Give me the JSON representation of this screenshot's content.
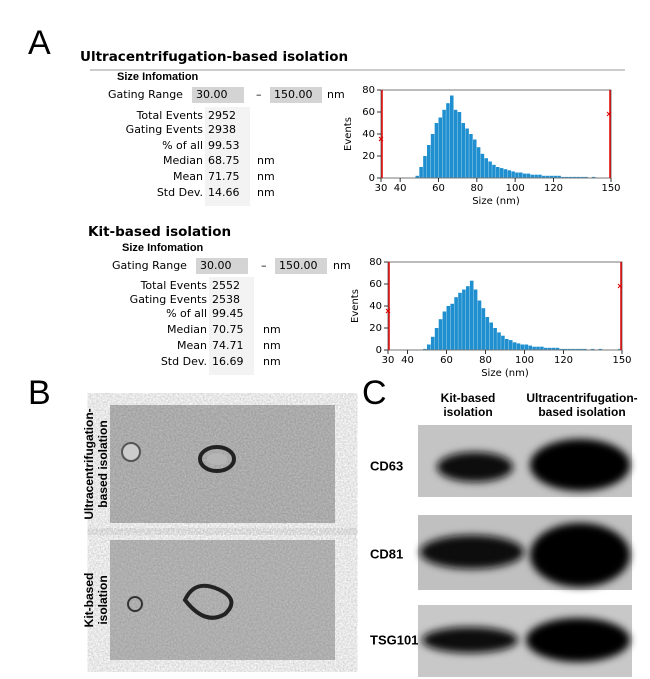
{
  "panel_a": {
    "label": "A",
    "sections": [
      {
        "title": "Ultracentrifugation-based isolation",
        "info_title": "Size Infomation",
        "gating": {
          "label": "Gating Range",
          "low": "30.00",
          "sep": "–",
          "high": "150.00",
          "unit": "nm"
        },
        "rows": [
          {
            "label": "Total  Events",
            "value": "2952"
          },
          {
            "label": "Gating Events",
            "value": "2938"
          },
          {
            "label": "% of all",
            "value": "99.53"
          },
          {
            "label": "Median",
            "value": "68.75",
            "unit": "nm"
          },
          {
            "label": "Mean",
            "value": "71.75",
            "unit": "nm"
          },
          {
            "label": "Std Dev.",
            "value": "14.66",
            "unit": "nm"
          }
        ]
      },
      {
        "title": "Kit-based isolation",
        "info_title": "Size Infomation",
        "gating": {
          "label": "Gating Range",
          "low": "30.00",
          "sep": "–",
          "high": "150.00",
          "unit": "nm"
        },
        "rows": [
          {
            "label": "Total  Events",
            "value": "2552"
          },
          {
            "label": "Gating Events",
            "value": "2538"
          },
          {
            "label": "% of all",
            "value": "99.45"
          },
          {
            "label": "Median",
            "value": "70.75",
            "unit": "nm"
          },
          {
            "label": "Mean",
            "value": "74.71",
            "unit": "nm"
          },
          {
            "label": "Std Dev.",
            "value": "16.69",
            "unit": "nm"
          }
        ]
      }
    ]
  },
  "panel_b": {
    "label": "B",
    "rows": [
      [
        "Ultracentrifugation-",
        "based isolation"
      ],
      [
        "Kit-based",
        "isolation"
      ]
    ]
  },
  "panel_c": {
    "label": "C",
    "columns": [
      [
        "Kit-based",
        "isolation"
      ],
      [
        "Ultracentrifugation-",
        "based isolation"
      ]
    ],
    "rows": [
      "CD63",
      "CD81",
      "TSG101"
    ]
  },
  "chart_data": [
    {
      "type": "histogram",
      "x_label": "Size (nm)",
      "y_label": "Events",
      "color": "#1f8fd0",
      "bins": [
        30,
        32,
        34,
        36,
        38,
        40,
        42,
        44,
        46,
        48,
        50,
        52,
        54,
        56,
        58,
        60,
        62,
        64,
        66,
        68,
        70,
        72,
        74,
        76,
        78,
        80,
        82,
        84,
        86,
        88,
        90,
        92,
        94,
        96,
        98,
        100,
        102,
        104,
        106,
        108,
        110,
        112,
        114,
        116,
        118,
        120,
        122,
        124,
        126,
        128,
        130,
        132,
        134,
        136,
        138,
        140,
        142,
        144,
        146,
        148,
        150
      ],
      "counts": [
        0,
        0,
        0,
        0,
        0,
        0,
        0,
        0,
        0,
        2,
        10,
        20,
        30,
        40,
        50,
        55,
        62,
        68,
        75,
        62,
        60,
        50,
        45,
        40,
        35,
        28,
        22,
        18,
        15,
        12,
        10,
        9,
        8,
        7,
        6,
        5,
        5,
        4,
        4,
        3,
        3,
        3,
        2,
        2,
        2,
        2,
        2,
        1,
        1,
        1,
        1,
        1,
        1,
        1,
        0,
        1,
        0,
        0,
        0,
        0
      ],
      "xlim": [
        30,
        150
      ],
      "ylim": [
        0,
        80
      ],
      "xticks": [
        30,
        40,
        60,
        80,
        100,
        120,
        150
      ],
      "yticks": [
        0,
        20,
        40,
        60,
        80
      ]
    },
    {
      "type": "histogram",
      "x_label": "Size (nm)",
      "y_label": "Events",
      "color": "#1f8fd0",
      "bins": [
        30,
        32,
        34,
        36,
        38,
        40,
        42,
        44,
        46,
        48,
        50,
        52,
        54,
        56,
        58,
        60,
        62,
        64,
        66,
        68,
        70,
        72,
        74,
        76,
        78,
        80,
        82,
        84,
        86,
        88,
        90,
        92,
        94,
        96,
        98,
        100,
        102,
        104,
        106,
        108,
        110,
        112,
        114,
        116,
        118,
        120,
        122,
        124,
        126,
        128,
        130,
        132,
        134,
        136,
        138,
        140,
        142,
        144,
        146,
        148,
        150
      ],
      "counts": [
        0,
        0,
        0,
        0,
        0,
        0,
        0,
        0,
        0,
        1,
        5,
        12,
        20,
        28,
        35,
        40,
        42,
        48,
        52,
        55,
        58,
        63,
        55,
        45,
        38,
        30,
        25,
        20,
        16,
        13,
        10,
        9,
        7,
        6,
        5,
        5,
        4,
        3,
        3,
        3,
        2,
        2,
        2,
        2,
        1,
        1,
        1,
        1,
        1,
        1,
        1,
        0,
        1,
        0,
        1,
        0,
        0,
        0,
        0,
        1
      ],
      "xlim": [
        30,
        150
      ],
      "ylim": [
        0,
        80
      ],
      "xticks": [
        30,
        40,
        60,
        80,
        100,
        120,
        150
      ],
      "yticks": [
        0,
        20,
        40,
        60,
        80
      ]
    }
  ]
}
